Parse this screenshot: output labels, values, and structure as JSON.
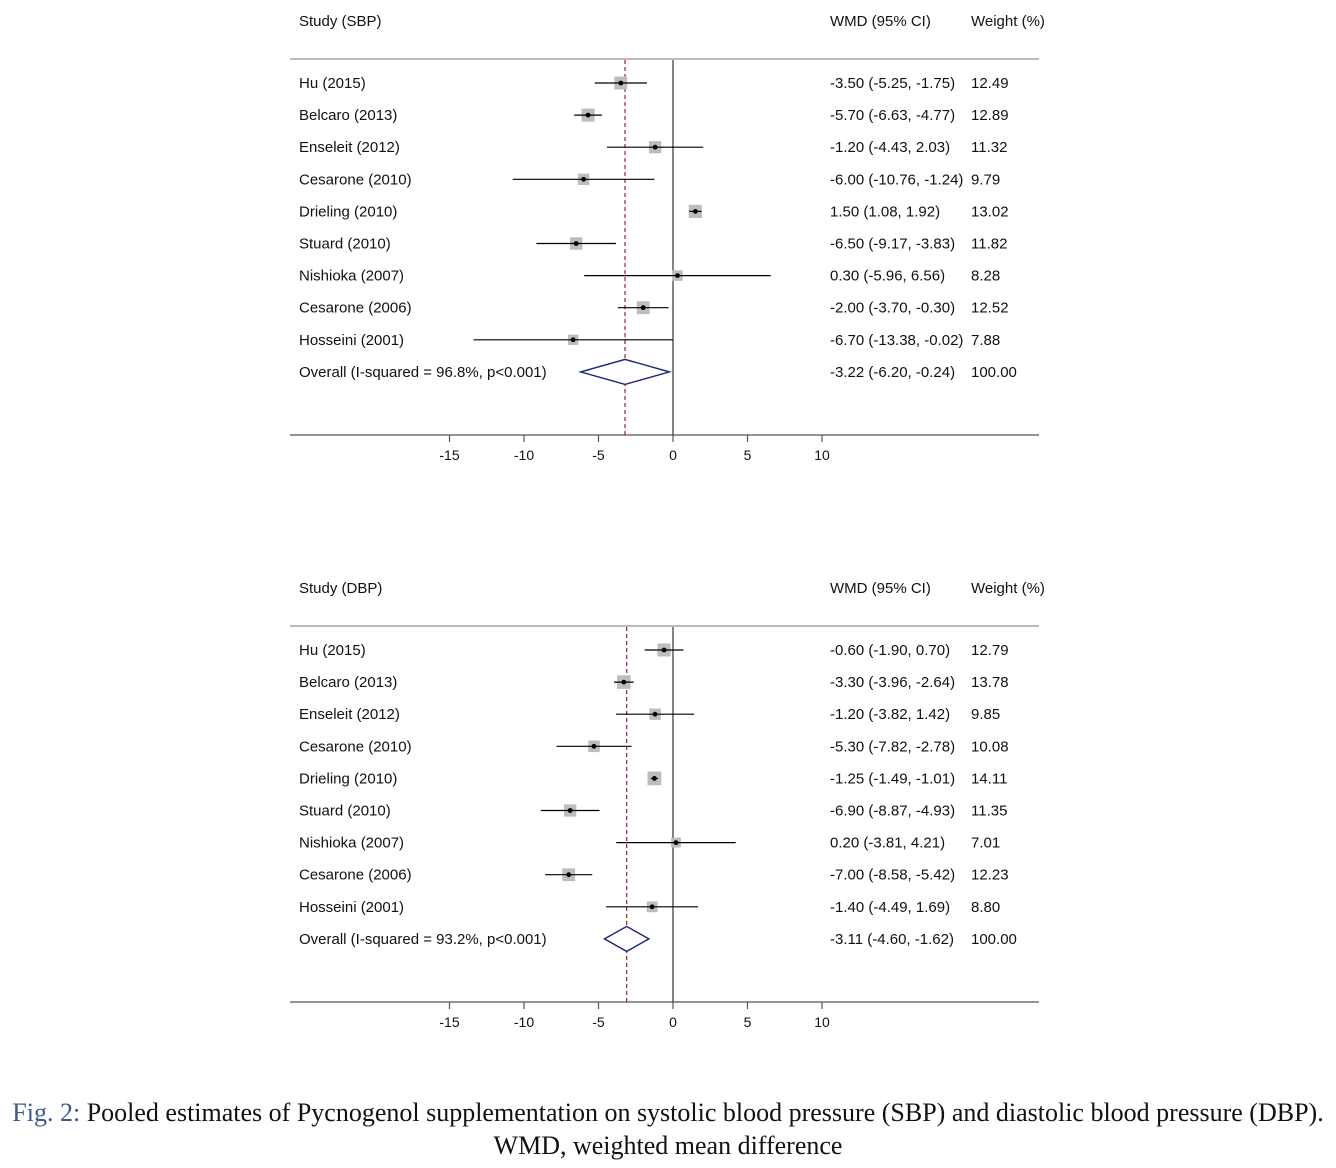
{
  "caption": {
    "label": "Fig. 2:",
    "text": "Pooled estimates of Pycnogenol supplementation on systolic blood pressure (SBP) and diastolic blood pressure (DBP). WMD, weighted mean difference"
  },
  "colors": {
    "marker_box": "#bdbdbd",
    "ci_line": "#000000",
    "pooled_line": "#a01c2c",
    "diamond": "#1a237e",
    "axis": "#555555"
  },
  "chart_data": [
    {
      "type": "forest",
      "study_header": "Study (SBP)",
      "effect_header": "WMD (95% CI)",
      "weight_header": "Weight (%)",
      "x_ticks": [
        -15,
        -10,
        -5,
        0,
        5,
        10
      ],
      "xlim": [
        -15,
        10
      ],
      "studies": [
        {
          "label": "Hu (2015)",
          "est": -3.5,
          "lo": -5.25,
          "hi": -1.75,
          "ci_text": "-3.50 (-5.25, -1.75)",
          "weight": 12.49,
          "weight_text": "12.49"
        },
        {
          "label": "Belcaro (2013)",
          "est": -5.7,
          "lo": -6.63,
          "hi": -4.77,
          "ci_text": "-5.70 (-6.63, -4.77)",
          "weight": 12.89,
          "weight_text": "12.89"
        },
        {
          "label": "Enseleit (2012)",
          "est": -1.2,
          "lo": -4.43,
          "hi": 2.03,
          "ci_text": "-1.20 (-4.43, 2.03)",
          "weight": 11.32,
          "weight_text": "11.32"
        },
        {
          "label": "Cesarone (2010)",
          "est": -6.0,
          "lo": -10.76,
          "hi": -1.24,
          "ci_text": "-6.00 (-10.76, -1.24)",
          "weight": 9.79,
          "weight_text": "9.79"
        },
        {
          "label": "Drieling (2010)",
          "est": 1.5,
          "lo": 1.08,
          "hi": 1.92,
          "ci_text": "1.50 (1.08, 1.92)",
          "weight": 13.02,
          "weight_text": "13.02"
        },
        {
          "label": "Stuard (2010)",
          "est": -6.5,
          "lo": -9.17,
          "hi": -3.83,
          "ci_text": "-6.50 (-9.17, -3.83)",
          "weight": 11.82,
          "weight_text": "11.82"
        },
        {
          "label": "Nishioka (2007)",
          "est": 0.3,
          "lo": -5.96,
          "hi": 6.56,
          "ci_text": "0.30 (-5.96, 6.56)",
          "weight": 8.28,
          "weight_text": "8.28"
        },
        {
          "label": "Cesarone (2006)",
          "est": -2.0,
          "lo": -3.7,
          "hi": -0.3,
          "ci_text": "-2.00 (-3.70, -0.30)",
          "weight": 12.52,
          "weight_text": "12.52"
        },
        {
          "label": "Hosseini (2001)",
          "est": -6.7,
          "lo": -13.38,
          "hi": -0.02,
          "ci_text": "-6.70 (-13.38, -0.02)",
          "weight": 7.88,
          "weight_text": "7.88"
        }
      ],
      "overall": {
        "label": "Overall  (I-squared = 96.8%, p<0.001)",
        "est": -3.22,
        "lo": -6.2,
        "hi": -0.24,
        "ci_text": "-3.22 (-6.20, -0.24)",
        "weight_text": "100.00"
      }
    },
    {
      "type": "forest",
      "study_header": "Study (DBP)",
      "effect_header": "WMD (95% CI)",
      "weight_header": "Weight (%)",
      "x_ticks": [
        -15,
        -10,
        -5,
        0,
        5,
        10
      ],
      "xlim": [
        -15,
        10
      ],
      "studies": [
        {
          "label": "Hu (2015)",
          "est": -0.6,
          "lo": -1.9,
          "hi": 0.7,
          "ci_text": "-0.60 (-1.90, 0.70)",
          "weight": 12.79,
          "weight_text": "12.79"
        },
        {
          "label": "Belcaro (2013)",
          "est": -3.3,
          "lo": -3.96,
          "hi": -2.64,
          "ci_text": "-3.30 (-3.96, -2.64)",
          "weight": 13.78,
          "weight_text": "13.78"
        },
        {
          "label": "Enseleit (2012)",
          "est": -1.2,
          "lo": -3.82,
          "hi": 1.42,
          "ci_text": "-1.20 (-3.82, 1.42)",
          "weight": 9.85,
          "weight_text": "9.85"
        },
        {
          "label": "Cesarone (2010)",
          "est": -5.3,
          "lo": -7.82,
          "hi": -2.78,
          "ci_text": "-5.30 (-7.82, -2.78)",
          "weight": 10.08,
          "weight_text": "10.08"
        },
        {
          "label": "Drieling (2010)",
          "est": -1.25,
          "lo": -1.49,
          "hi": -1.01,
          "ci_text": "-1.25 (-1.49, -1.01)",
          "weight": 14.11,
          "weight_text": "14.11"
        },
        {
          "label": "Stuard (2010)",
          "est": -6.9,
          "lo": -8.87,
          "hi": -4.93,
          "ci_text": "-6.90 (-8.87, -4.93)",
          "weight": 11.35,
          "weight_text": "11.35"
        },
        {
          "label": "Nishioka (2007)",
          "est": 0.2,
          "lo": -3.81,
          "hi": 4.21,
          "ci_text": "0.20 (-3.81, 4.21)",
          "weight": 7.01,
          "weight_text": "7.01"
        },
        {
          "label": "Cesarone (2006)",
          "est": -7.0,
          "lo": -8.58,
          "hi": -5.42,
          "ci_text": "-7.00 (-8.58, -5.42)",
          "weight": 12.23,
          "weight_text": "12.23"
        },
        {
          "label": "Hosseini (2001)",
          "est": -1.4,
          "lo": -4.49,
          "hi": 1.69,
          "ci_text": "-1.40 (-4.49, 1.69)",
          "weight": 8.8,
          "weight_text": "8.80"
        }
      ],
      "overall": {
        "label": "Overall  (I-squared = 93.2%, p<0.001)",
        "est": -3.11,
        "lo": -4.6,
        "hi": -1.62,
        "ci_text": "-3.11 (-4.60, -1.62)",
        "weight_text": "100.00"
      }
    }
  ]
}
